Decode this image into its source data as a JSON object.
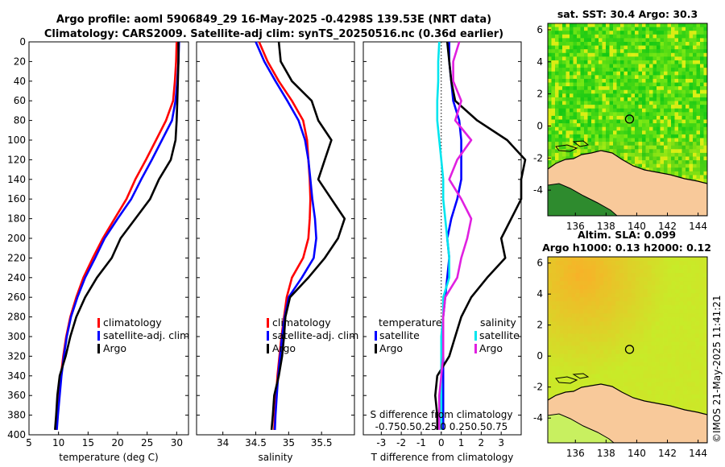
{
  "header": {
    "title_line1": "Argo profile: aoml 5906849_29 16-May-2025 -0.4298S 139.53E (NRT data)",
    "title_line2": "Climatology: CARS2009. Satellite-adj clim: synTS_20250516.nc (0.36d earlier)"
  },
  "colors": {
    "climatology": "#ff0000",
    "satellite": "#0000ff",
    "argo": "#000000",
    "sat_salinity": "#00e5ee",
    "argo_salinity": "#e020e0",
    "land": "#f8c99a"
  },
  "depth_ticks": [
    "0",
    "20",
    "40",
    "60",
    "80",
    "100",
    "120",
    "140",
    "160",
    "180",
    "200",
    "220",
    "240",
    "260",
    "280",
    "300",
    "320",
    "340",
    "360",
    "380",
    "400"
  ],
  "chart_data": [
    {
      "id": "temperature",
      "type": "line",
      "xlabel": "temperature (deg C)",
      "ylabel": "depth",
      "xlim": [
        5,
        32
      ],
      "ylim": [
        400,
        0
      ],
      "xticks": [
        "5",
        "10",
        "15",
        "20",
        "25",
        "30"
      ],
      "legend": [
        "climatology",
        "satellite-adj. clim",
        "Argo"
      ],
      "depth": [
        0,
        20,
        40,
        60,
        80,
        100,
        120,
        140,
        160,
        180,
        200,
        220,
        240,
        260,
        280,
        300,
        320,
        340,
        360,
        380,
        395
      ],
      "series": [
        {
          "name": "climatology",
          "values": [
            30.0,
            29.9,
            29.7,
            29.4,
            28.2,
            26.5,
            24.8,
            23.0,
            21.5,
            19.5,
            17.5,
            15.8,
            14.2,
            13.0,
            12.0,
            11.3,
            10.8,
            10.4,
            10.1,
            9.8,
            9.6
          ]
        },
        {
          "name": "satellite-adj. clim",
          "values": [
            30.4,
            30.3,
            30.1,
            29.8,
            29.2,
            27.5,
            25.8,
            24.0,
            22.3,
            20.0,
            17.8,
            16.2,
            14.5,
            13.2,
            12.1,
            11.4,
            10.9,
            10.5,
            10.2,
            9.9,
            9.7
          ]
        },
        {
          "name": "Argo",
          "values": [
            30.3,
            30.3,
            30.2,
            30.1,
            30.0,
            29.8,
            29.0,
            27.0,
            25.5,
            23.0,
            20.5,
            19.0,
            16.5,
            14.5,
            13.0,
            12.0,
            11.2,
            10.2,
            9.8,
            9.6,
            9.4
          ]
        }
      ]
    },
    {
      "id": "salinity",
      "type": "line",
      "xlabel": "salinity",
      "xlim": [
        33.6,
        36.0
      ],
      "ylim": [
        400,
        0
      ],
      "xticks": [
        "34",
        "34.5",
        "35",
        "35.5"
      ],
      "legend": [
        "climatology",
        "satellite-adj. clim",
        "Argo"
      ],
      "depth": [
        0,
        20,
        40,
        60,
        80,
        100,
        120,
        140,
        160,
        180,
        200,
        220,
        240,
        260,
        280,
        300,
        320,
        340,
        360,
        380,
        395
      ],
      "series": [
        {
          "name": "climatology",
          "values": [
            34.55,
            34.68,
            34.85,
            35.05,
            35.22,
            35.28,
            35.3,
            35.32,
            35.33,
            35.32,
            35.3,
            35.22,
            35.05,
            34.97,
            34.93,
            34.89,
            34.86,
            34.83,
            34.81,
            34.79,
            34.78
          ]
        },
        {
          "name": "satellite-adj. clim",
          "values": [
            34.5,
            34.63,
            34.8,
            34.98,
            35.15,
            35.25,
            35.3,
            35.33,
            35.36,
            35.4,
            35.42,
            35.38,
            35.2,
            35.0,
            34.94,
            34.9,
            34.87,
            34.84,
            34.82,
            34.8,
            34.79
          ]
        },
        {
          "name": "Argo",
          "values": [
            34.85,
            34.88,
            35.05,
            35.35,
            35.45,
            35.65,
            35.55,
            35.45,
            35.65,
            35.85,
            35.75,
            35.55,
            35.3,
            35.02,
            34.95,
            34.93,
            34.9,
            34.85,
            34.78,
            34.76,
            34.74
          ]
        }
      ]
    },
    {
      "id": "difference",
      "type": "line",
      "xlabel": "T difference from climatology",
      "xlim": [
        -3.9,
        4.0
      ],
      "ylim": [
        400,
        0
      ],
      "xticks": [
        "-3",
        "-2",
        "-1",
        "0",
        "1",
        "2",
        "3"
      ],
      "legend_temperature_title": "temperature",
      "legend_salinity_title": "salinity",
      "legend_temperature": [
        "satellite",
        "Argo"
      ],
      "legend_salinity": [
        "satellite",
        "Argo"
      ],
      "s_axis_label": "S difference from climatology",
      "s_ticks": "-0.750.50.25 0  0.250.50.75",
      "depth": [
        0,
        20,
        40,
        60,
        80,
        100,
        120,
        140,
        160,
        180,
        200,
        220,
        240,
        260,
        280,
        300,
        320,
        340,
        360,
        380,
        395
      ],
      "series": [
        {
          "name": "T satellite",
          "values": [
            0.4,
            0.4,
            0.5,
            0.6,
            0.9,
            1.0,
            1.0,
            1.0,
            0.8,
            0.5,
            0.3,
            0.4,
            0.3,
            0.2,
            0.1,
            0.1,
            0.1,
            0.1,
            0.1,
            0.1,
            0.1
          ]
        },
        {
          "name": "T Argo",
          "values": [
            0.3,
            0.4,
            0.5,
            0.7,
            1.8,
            3.3,
            4.2,
            4.0,
            4.0,
            3.5,
            3.0,
            3.2,
            2.3,
            1.5,
            1.0,
            0.7,
            0.4,
            -0.2,
            -0.3,
            -0.2,
            -0.2
          ]
        },
        {
          "name": "S satellite",
          "values": [
            -0.1,
            -0.15,
            -0.15,
            -0.2,
            -0.2,
            -0.1,
            0.0,
            0.1,
            0.1,
            0.2,
            0.3,
            0.4,
            0.4,
            0.1,
            0.1,
            0.0,
            0.0,
            0.0,
            0.0,
            0.0,
            0.0
          ]
        },
        {
          "name": "S Argo",
          "values": [
            0.9,
            0.6,
            0.6,
            1.0,
            0.7,
            1.5,
            0.8,
            0.4,
            1.0,
            1.5,
            1.3,
            1.0,
            0.8,
            0.2,
            0.1,
            0.1,
            0.1,
            0.0,
            -0.1,
            -0.1,
            -0.1
          ]
        }
      ]
    },
    {
      "id": "sst_map",
      "type": "heatmap",
      "title": "sat. SST: 30.4 Argo: 30.3",
      "xlim": [
        134.2,
        144.6
      ],
      "ylim": [
        -5.6,
        6.4
      ],
      "xticks": [
        "136",
        "138",
        "140",
        "142",
        "144"
      ],
      "yticks": [
        "6",
        "4",
        "2",
        "0",
        "-2",
        "-4"
      ],
      "marker": [
        139.53,
        0.43
      ]
    },
    {
      "id": "sla_map",
      "type": "heatmap",
      "title_line1": "Altim. SLA: 0.099",
      "title_line2": "Argo h1000: 0.13 h2000: 0.12",
      "xlim": [
        134.2,
        144.6
      ],
      "ylim": [
        -5.6,
        6.4
      ],
      "xticks": [
        "136",
        "138",
        "140",
        "142",
        "144"
      ],
      "yticks": [
        "6",
        "4",
        "2",
        "0",
        "-2",
        "-4"
      ],
      "marker": [
        139.53,
        0.43
      ]
    }
  ],
  "credit": "©IMOS 21-May-2025 11:41:21"
}
